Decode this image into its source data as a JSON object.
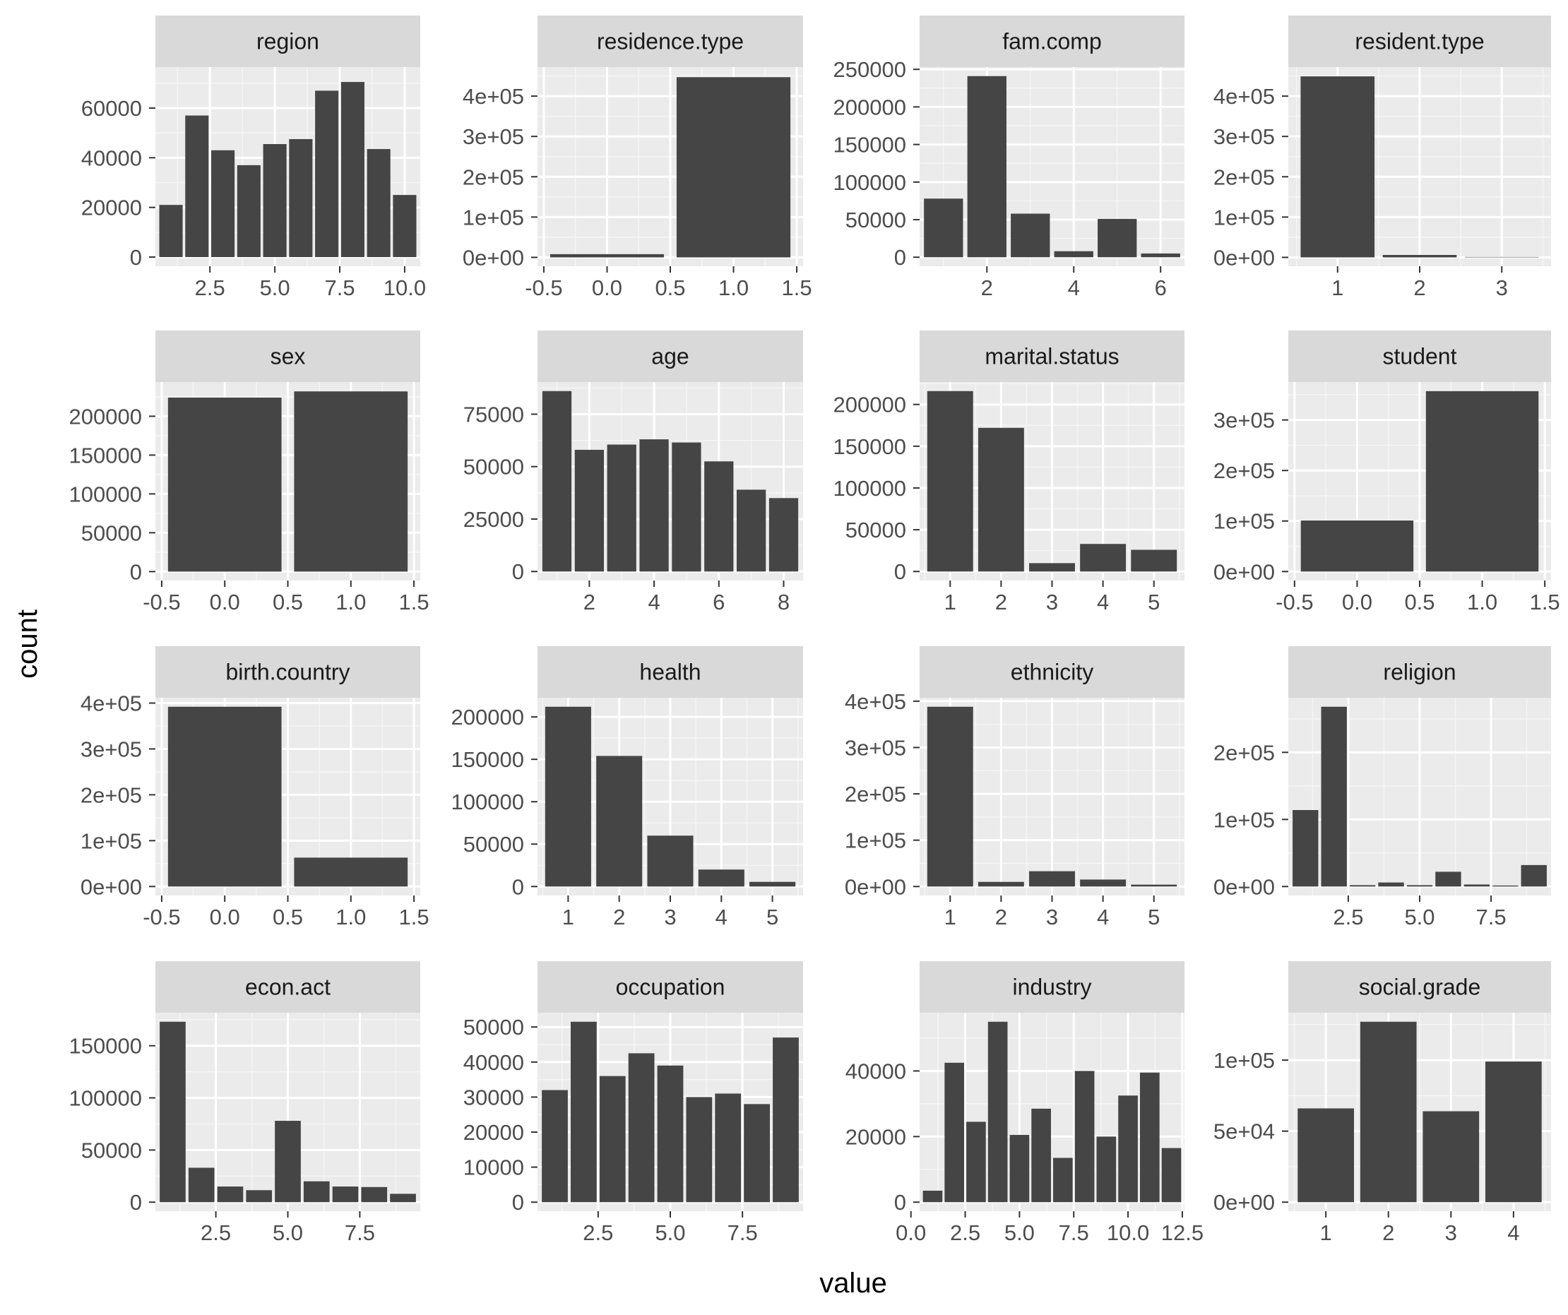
{
  "figure": {
    "xlabel": "value",
    "ylabel": "count"
  },
  "colors": {
    "panel_bg": "#ebebeb",
    "grid_major": "#ffffff",
    "grid_minor": "#f5f5f5",
    "strip_bg": "#d9d9d9",
    "bar": "#454545",
    "tick": "#333333"
  },
  "chart_data": [
    {
      "type": "bar",
      "title": "region",
      "x": [
        1,
        2,
        3,
        4,
        5,
        6,
        7,
        8,
        9,
        10
      ],
      "values": [
        21000,
        57000,
        43000,
        37000,
        45500,
        47500,
        67000,
        70500,
        43500,
        25000
      ],
      "xlim": [
        0.4,
        10.6
      ],
      "ylim": [
        -3700,
        76500
      ],
      "xticks": [
        2.5,
        5,
        7.5,
        10
      ],
      "xtick_labels": [
        "2.5",
        "5.0",
        "7.5",
        "10.0"
      ],
      "yticks": [
        0,
        20000,
        40000,
        60000
      ],
      "ytick_labels": [
        "0",
        "20000",
        "40000",
        "60000"
      ]
    },
    {
      "type": "bar",
      "title": "residence.type",
      "x": [
        0,
        1
      ],
      "values": [
        8000,
        447000
      ],
      "xlim": [
        -0.55,
        1.55
      ],
      "ylim": [
        -22000,
        472000
      ],
      "xticks": [
        -0.5,
        0,
        0.5,
        1,
        1.5
      ],
      "xtick_labels": [
        "-0.5",
        "0.0",
        "0.5",
        "1.0",
        "1.5"
      ],
      "yticks": [
        0,
        100000,
        200000,
        300000,
        400000
      ],
      "ytick_labels": [
        "0e+00",
        "1e+05",
        "2e+05",
        "3e+05",
        "4e+05"
      ]
    },
    {
      "type": "bar",
      "title": "fam.comp",
      "x": [
        1,
        2,
        3,
        4,
        5,
        6
      ],
      "values": [
        78000,
        241000,
        58000,
        8000,
        51000,
        5000
      ],
      "xlim": [
        0.45,
        6.55
      ],
      "ylim": [
        -12000,
        253000
      ],
      "xticks": [
        2,
        4,
        6
      ],
      "xtick_labels": [
        "2",
        "4",
        "6"
      ],
      "yticks": [
        0,
        50000,
        100000,
        150000,
        200000,
        250000
      ],
      "ytick_labels": [
        "0",
        "50000",
        "100000",
        "150000",
        "200000",
        "250000"
      ]
    },
    {
      "type": "bar",
      "title": "resident.type",
      "x": [
        1,
        2,
        3
      ],
      "values": [
        449000,
        6000,
        1000
      ],
      "xlim": [
        0.4,
        3.6
      ],
      "ylim": [
        -22000,
        472000
      ],
      "xticks": [
        1,
        2,
        3
      ],
      "xtick_labels": [
        "1",
        "2",
        "3"
      ],
      "yticks": [
        0,
        100000,
        200000,
        300000,
        400000
      ],
      "ytick_labels": [
        "0e+00",
        "1e+05",
        "2e+05",
        "3e+05",
        "4e+05"
      ]
    },
    {
      "type": "bar",
      "title": "sex",
      "x": [
        0,
        1
      ],
      "values": [
        224000,
        232000
      ],
      "xlim": [
        -0.55,
        1.55
      ],
      "ylim": [
        -11500,
        244000
      ],
      "xticks": [
        -0.5,
        0,
        0.5,
        1,
        1.5
      ],
      "xtick_labels": [
        "-0.5",
        "0.0",
        "0.5",
        "1.0",
        "1.5"
      ],
      "yticks": [
        0,
        50000,
        100000,
        150000,
        200000
      ],
      "ytick_labels": [
        "0",
        "50000",
        "100000",
        "150000",
        "200000"
      ]
    },
    {
      "type": "bar",
      "title": "age",
      "x": [
        1,
        2,
        3,
        4,
        5,
        6,
        7,
        8
      ],
      "values": [
        86000,
        58000,
        60500,
        63000,
        61500,
        52500,
        39000,
        35000
      ],
      "xlim": [
        0.4,
        8.6
      ],
      "ylim": [
        -4300,
        90300
      ],
      "xticks": [
        2,
        4,
        6,
        8
      ],
      "xtick_labels": [
        "2",
        "4",
        "6",
        "8"
      ],
      "yticks": [
        0,
        25000,
        50000,
        75000
      ],
      "ytick_labels": [
        "0",
        "25000",
        "50000",
        "75000"
      ]
    },
    {
      "type": "bar",
      "title": "marital.status",
      "x": [
        1,
        2,
        3,
        4,
        5
      ],
      "values": [
        216000,
        172000,
        10000,
        33000,
        26000
      ],
      "xlim": [
        0.4,
        5.6
      ],
      "ylim": [
        -10800,
        226800
      ],
      "xticks": [
        1,
        2,
        3,
        4,
        5
      ],
      "xtick_labels": [
        "1",
        "2",
        "3",
        "4",
        "5"
      ],
      "yticks": [
        0,
        50000,
        100000,
        150000,
        200000
      ],
      "ytick_labels": [
        "0",
        "50000",
        "100000",
        "150000",
        "200000"
      ]
    },
    {
      "type": "bar",
      "title": "student",
      "x": [
        0,
        1
      ],
      "values": [
        101000,
        357000
      ],
      "xlim": [
        -0.55,
        1.55
      ],
      "ylim": [
        -17800,
        375000
      ],
      "xticks": [
        -0.5,
        0,
        0.5,
        1,
        1.5
      ],
      "xtick_labels": [
        "-0.5",
        "0.0",
        "0.5",
        "1.0",
        "1.5"
      ],
      "yticks": [
        0,
        100000,
        200000,
        300000
      ],
      "ytick_labels": [
        "0e+00",
        "1e+05",
        "2e+05",
        "3e+05"
      ]
    },
    {
      "type": "bar",
      "title": "birth.country",
      "x": [
        0,
        1
      ],
      "values": [
        392000,
        63000
      ],
      "xlim": [
        -0.55,
        1.55
      ],
      "ylim": [
        -19600,
        411600
      ],
      "xticks": [
        -0.5,
        0,
        0.5,
        1,
        1.5
      ],
      "xtick_labels": [
        "-0.5",
        "0.0",
        "0.5",
        "1.0",
        "1.5"
      ],
      "yticks": [
        0,
        100000,
        200000,
        300000,
        400000
      ],
      "ytick_labels": [
        "0e+00",
        "1e+05",
        "2e+05",
        "3e+05",
        "4e+05"
      ]
    },
    {
      "type": "bar",
      "title": "health",
      "x": [
        1,
        2,
        3,
        4,
        5
      ],
      "values": [
        212000,
        154000,
        60000,
        20000,
        5500
      ],
      "xlim": [
        0.4,
        5.6
      ],
      "ylim": [
        -10600,
        222600
      ],
      "xticks": [
        1,
        2,
        3,
        4,
        5
      ],
      "xtick_labels": [
        "1",
        "2",
        "3",
        "4",
        "5"
      ],
      "yticks": [
        0,
        50000,
        100000,
        150000,
        200000
      ],
      "ytick_labels": [
        "0",
        "50000",
        "100000",
        "150000",
        "200000"
      ]
    },
    {
      "type": "bar",
      "title": "ethnicity",
      "x": [
        1,
        2,
        3,
        4,
        5
      ],
      "values": [
        388000,
        10000,
        33000,
        15000,
        4000
      ],
      "xlim": [
        0.4,
        5.6
      ],
      "ylim": [
        -19400,
        407400
      ],
      "xticks": [
        1,
        2,
        3,
        4,
        5
      ],
      "xtick_labels": [
        "1",
        "2",
        "3",
        "4",
        "5"
      ],
      "yticks": [
        0,
        100000,
        200000,
        300000,
        400000
      ],
      "ytick_labels": [
        "0e+00",
        "1e+05",
        "2e+05",
        "3e+05",
        "4e+05"
      ]
    },
    {
      "type": "bar",
      "title": "religion",
      "x": [
        1,
        2,
        3,
        4,
        5,
        6,
        7,
        8,
        9
      ],
      "values": [
        114000,
        268000,
        2000,
        6000,
        2000,
        22000,
        3000,
        1500,
        32000
      ],
      "xlim": [
        0.4,
        9.6
      ],
      "ylim": [
        -13400,
        281400
      ],
      "xticks": [
        2.5,
        5,
        7.5
      ],
      "xtick_labels": [
        "2.5",
        "5.0",
        "7.5"
      ],
      "yticks": [
        0,
        100000,
        200000
      ],
      "ytick_labels": [
        "0e+00",
        "1e+05",
        "2e+05"
      ]
    },
    {
      "type": "bar",
      "title": "econ.act",
      "x": [
        1,
        2,
        3,
        4,
        5,
        6,
        7,
        8,
        9
      ],
      "values": [
        173000,
        33000,
        15000,
        11500,
        78000,
        20000,
        15000,
        14500,
        8000
      ],
      "xlim": [
        0.4,
        9.6
      ],
      "ylim": [
        -8650,
        181650
      ],
      "xticks": [
        2.5,
        5,
        7.5
      ],
      "xtick_labels": [
        "2.5",
        "5.0",
        "7.5"
      ],
      "yticks": [
        0,
        50000,
        100000,
        150000
      ],
      "ytick_labels": [
        "0",
        "50000",
        "100000",
        "150000"
      ]
    },
    {
      "type": "bar",
      "title": "occupation",
      "x": [
        1,
        2,
        3,
        4,
        5,
        6,
        7,
        8,
        9
      ],
      "values": [
        32000,
        51500,
        36000,
        42500,
        39000,
        30000,
        31000,
        28000,
        47000
      ],
      "xlim": [
        0.4,
        9.6
      ],
      "ylim": [
        -2575,
        54075
      ],
      "xticks": [
        2.5,
        5,
        7.5
      ],
      "xtick_labels": [
        "2.5",
        "5.0",
        "7.5"
      ],
      "yticks": [
        0,
        10000,
        20000,
        30000,
        40000,
        50000
      ],
      "ytick_labels": [
        "0",
        "10000",
        "20000",
        "30000",
        "40000",
        "50000"
      ]
    },
    {
      "type": "bar",
      "title": "industry",
      "x": [
        1,
        2,
        3,
        4,
        5,
        6,
        7,
        8,
        9,
        10,
        11,
        12
      ],
      "values": [
        3500,
        42500,
        24500,
        55000,
        20500,
        28500,
        13500,
        40000,
        20000,
        32500,
        39500,
        16500
      ],
      "xlim": [
        0.4,
        12.6
      ],
      "ylim": [
        -2750,
        57750
      ],
      "xticks": [
        0,
        2.5,
        5,
        7.5,
        10,
        12.5
      ],
      "xtick_labels": [
        "0.0",
        "2.5",
        "5.0",
        "7.5",
        "10.0",
        "12.5"
      ],
      "yticks": [
        0,
        20000,
        40000
      ],
      "ytick_labels": [
        "0",
        "20000",
        "40000"
      ]
    },
    {
      "type": "bar",
      "title": "social.grade",
      "x": [
        1,
        2,
        3,
        4
      ],
      "values": [
        66000,
        127000,
        64000,
        99000
      ],
      "xlim": [
        0.4,
        4.6
      ],
      "ylim": [
        -6350,
        133350
      ],
      "xticks": [
        1,
        2,
        3,
        4
      ],
      "xtick_labels": [
        "1",
        "2",
        "3",
        "4"
      ],
      "yticks": [
        0,
        50000,
        100000
      ],
      "ytick_labels": [
        "0e+00",
        "5e+04",
        "1e+05"
      ]
    }
  ]
}
